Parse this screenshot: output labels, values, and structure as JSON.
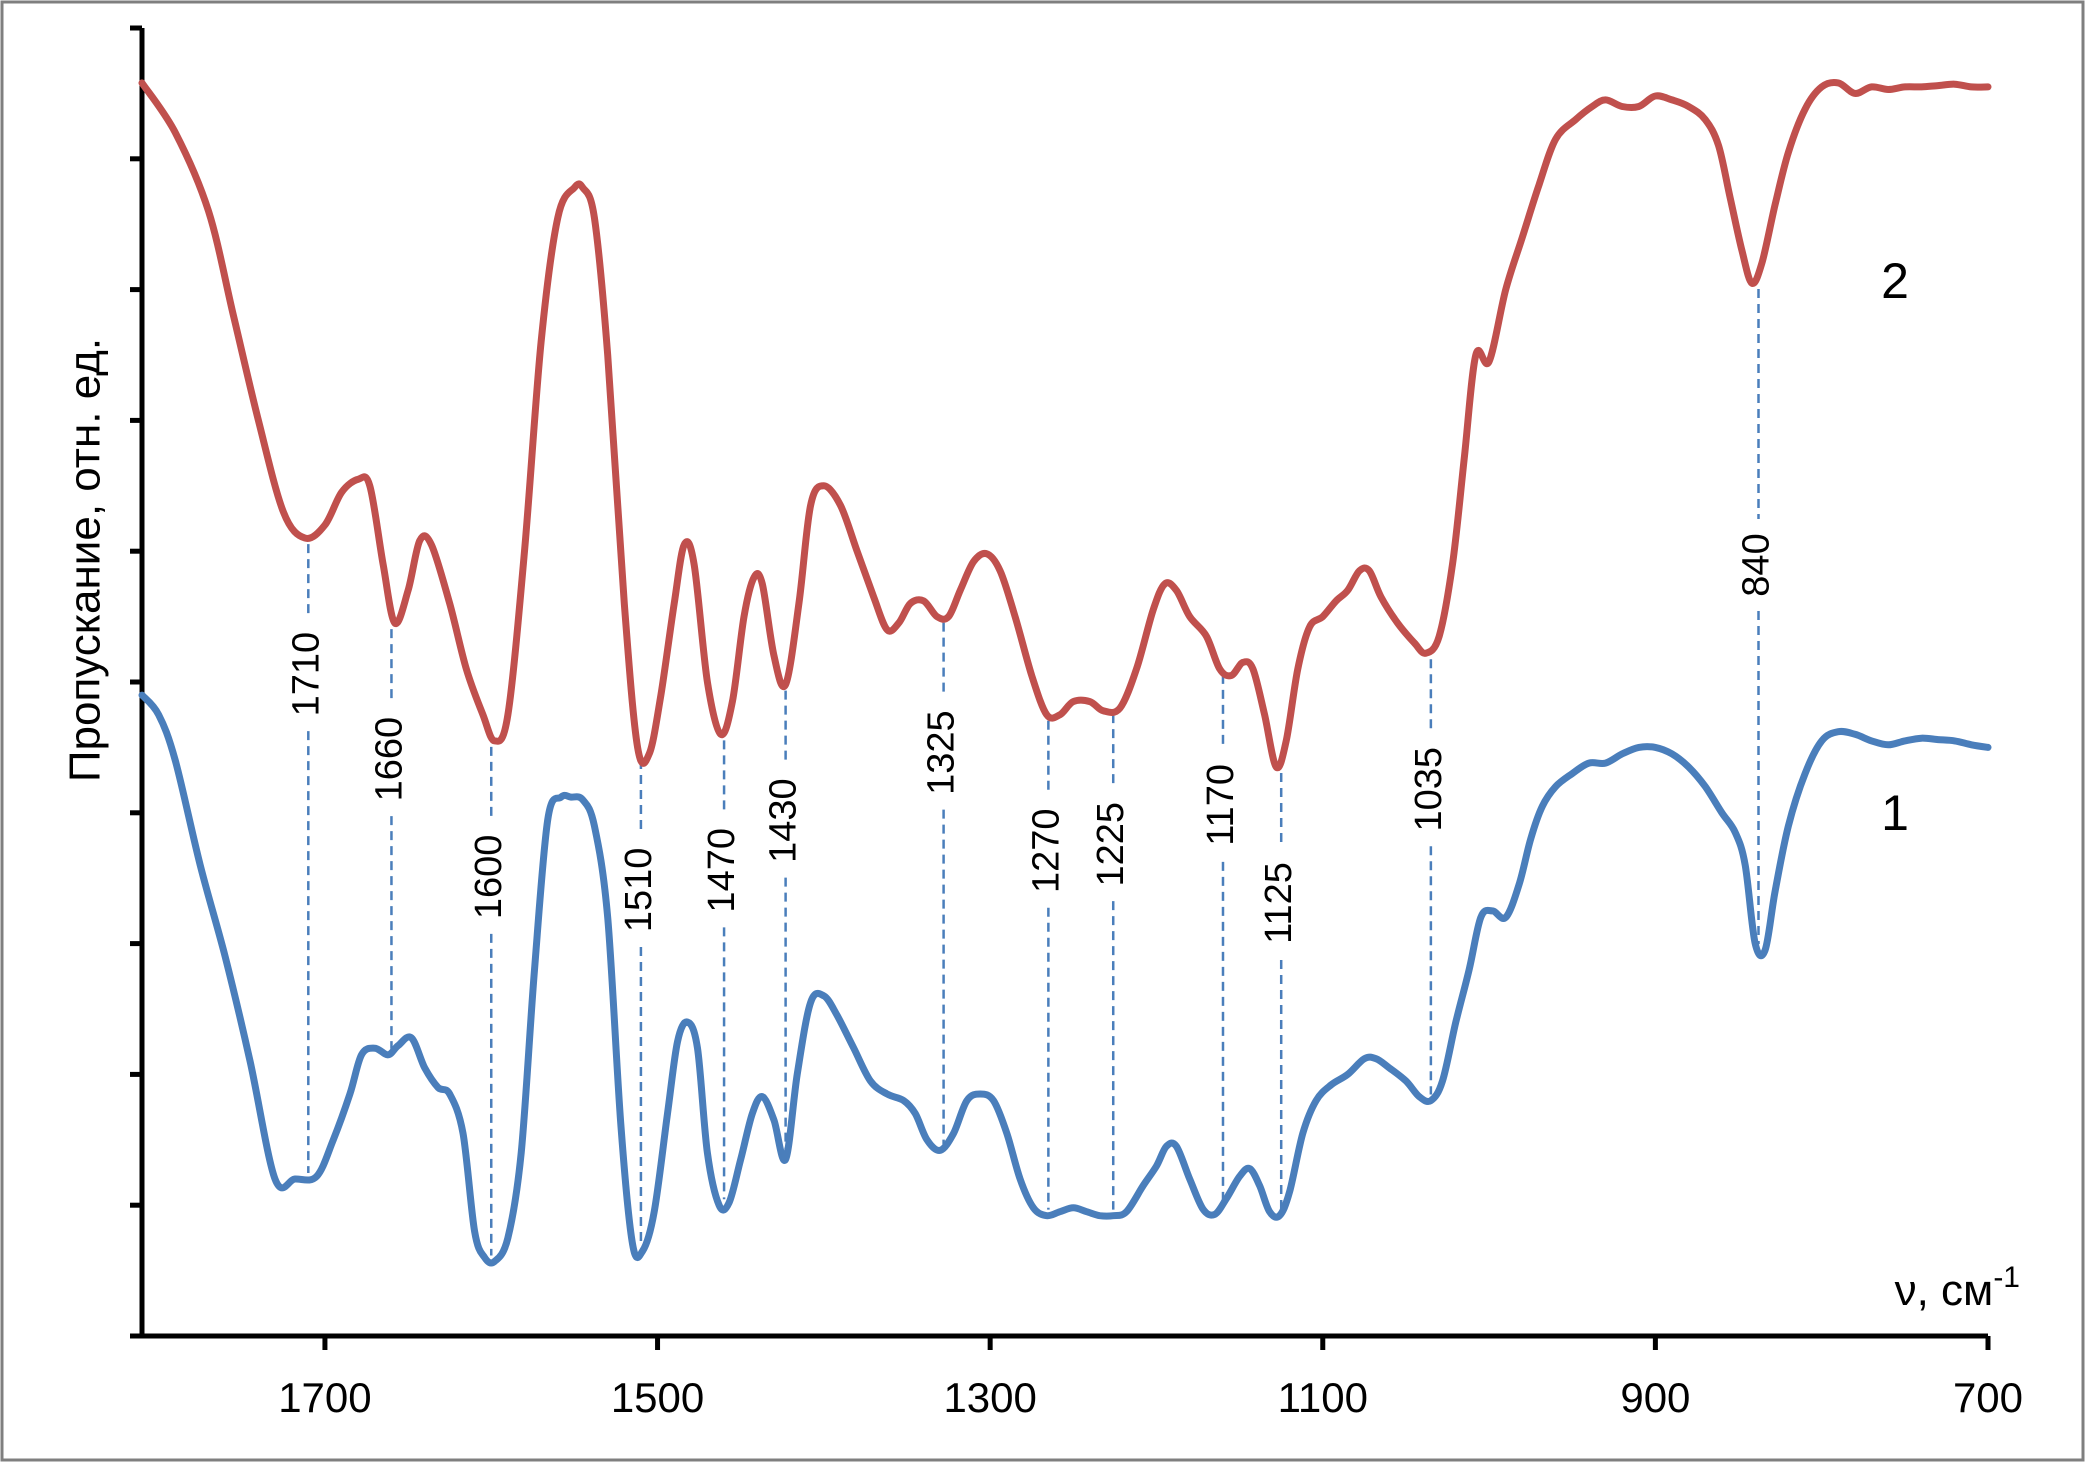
{
  "chart_data": {
    "type": "line",
    "ylabel": "Пропускание, отн. ед.",
    "xlabel": {
      "prefix": "ν, см",
      "superscript": "-1"
    },
    "xlim": [
      1810,
      700
    ],
    "x_ticks": [
      1700,
      1500,
      1300,
      1100,
      900,
      700
    ],
    "x_reversed": true,
    "y_tick_count": 10,
    "grid": false,
    "legend": "inline labels",
    "series": [
      {
        "name": "2",
        "color": "#c0504d",
        "points": [
          [
            1810,
            9.58
          ],
          [
            1790,
            9.2
          ],
          [
            1770,
            8.6
          ],
          [
            1755,
            7.8
          ],
          [
            1740,
            7.0
          ],
          [
            1725,
            6.3
          ],
          [
            1712,
            6.1
          ],
          [
            1700,
            6.2
          ],
          [
            1690,
            6.45
          ],
          [
            1680,
            6.55
          ],
          [
            1673,
            6.5
          ],
          [
            1665,
            5.9
          ],
          [
            1658,
            5.45
          ],
          [
            1650,
            5.7
          ],
          [
            1643,
            6.08
          ],
          [
            1636,
            6.05
          ],
          [
            1625,
            5.6
          ],
          [
            1615,
            5.1
          ],
          [
            1605,
            4.75
          ],
          [
            1598,
            4.55
          ],
          [
            1590,
            4.75
          ],
          [
            1580,
            6.0
          ],
          [
            1570,
            7.6
          ],
          [
            1560,
            8.55
          ],
          [
            1550,
            8.78
          ],
          [
            1545,
            8.78
          ],
          [
            1538,
            8.55
          ],
          [
            1530,
            7.5
          ],
          [
            1520,
            5.6
          ],
          [
            1512,
            4.5
          ],
          [
            1505,
            4.45
          ],
          [
            1498,
            4.9
          ],
          [
            1490,
            5.6
          ],
          [
            1484,
            6.05
          ],
          [
            1478,
            5.9
          ],
          [
            1470,
            5.0
          ],
          [
            1462,
            4.6
          ],
          [
            1455,
            4.85
          ],
          [
            1448,
            5.5
          ],
          [
            1442,
            5.8
          ],
          [
            1437,
            5.75
          ],
          [
            1430,
            5.2
          ],
          [
            1423,
            4.98
          ],
          [
            1415,
            5.6
          ],
          [
            1408,
            6.35
          ],
          [
            1400,
            6.5
          ],
          [
            1390,
            6.35
          ],
          [
            1380,
            6.0
          ],
          [
            1370,
            5.65
          ],
          [
            1362,
            5.4
          ],
          [
            1355,
            5.45
          ],
          [
            1348,
            5.6
          ],
          [
            1340,
            5.62
          ],
          [
            1332,
            5.5
          ],
          [
            1325,
            5.5
          ],
          [
            1318,
            5.7
          ],
          [
            1310,
            5.92
          ],
          [
            1302,
            5.98
          ],
          [
            1294,
            5.85
          ],
          [
            1285,
            5.5
          ],
          [
            1275,
            5.05
          ],
          [
            1266,
            4.75
          ],
          [
            1258,
            4.75
          ],
          [
            1250,
            4.85
          ],
          [
            1240,
            4.85
          ],
          [
            1232,
            4.78
          ],
          [
            1222,
            4.8
          ],
          [
            1212,
            5.1
          ],
          [
            1202,
            5.55
          ],
          [
            1195,
            5.75
          ],
          [
            1188,
            5.7
          ],
          [
            1180,
            5.5
          ],
          [
            1170,
            5.35
          ],
          [
            1162,
            5.1
          ],
          [
            1155,
            5.05
          ],
          [
            1148,
            5.15
          ],
          [
            1142,
            5.1
          ],
          [
            1135,
            4.75
          ],
          [
            1128,
            4.35
          ],
          [
            1122,
            4.55
          ],
          [
            1115,
            5.1
          ],
          [
            1108,
            5.42
          ],
          [
            1100,
            5.5
          ],
          [
            1092,
            5.62
          ],
          [
            1085,
            5.7
          ],
          [
            1078,
            5.85
          ],
          [
            1072,
            5.85
          ],
          [
            1065,
            5.65
          ],
          [
            1055,
            5.45
          ],
          [
            1045,
            5.3
          ],
          [
            1038,
            5.22
          ],
          [
            1030,
            5.35
          ],
          [
            1022,
            5.9
          ],
          [
            1015,
            6.7
          ],
          [
            1008,
            7.5
          ],
          [
            1000,
            7.45
          ],
          [
            990,
            8.0
          ],
          [
            980,
            8.4
          ],
          [
            970,
            8.8
          ],
          [
            960,
            9.15
          ],
          [
            948,
            9.3
          ],
          [
            938,
            9.4
          ],
          [
            930,
            9.45
          ],
          [
            920,
            9.4
          ],
          [
            910,
            9.4
          ],
          [
            900,
            9.48
          ],
          [
            890,
            9.45
          ],
          [
            880,
            9.4
          ],
          [
            870,
            9.3
          ],
          [
            862,
            9.1
          ],
          [
            855,
            8.7
          ],
          [
            848,
            8.3
          ],
          [
            842,
            8.05
          ],
          [
            836,
            8.2
          ],
          [
            828,
            8.65
          ],
          [
            820,
            9.05
          ],
          [
            810,
            9.38
          ],
          [
            800,
            9.55
          ],
          [
            790,
            9.58
          ],
          [
            780,
            9.5
          ],
          [
            770,
            9.55
          ],
          [
            760,
            9.53
          ],
          [
            750,
            9.55
          ],
          [
            740,
            9.55
          ],
          [
            730,
            9.56
          ],
          [
            720,
            9.57
          ],
          [
            710,
            9.55
          ],
          [
            700,
            9.55
          ]
        ]
      },
      {
        "name": "1",
        "color": "#4a7ebb",
        "points": [
          [
            1810,
            4.9
          ],
          [
            1800,
            4.75
          ],
          [
            1790,
            4.4
          ],
          [
            1775,
            3.6
          ],
          [
            1760,
            2.9
          ],
          [
            1745,
            2.1
          ],
          [
            1730,
            1.2
          ],
          [
            1718,
            1.2
          ],
          [
            1705,
            1.22
          ],
          [
            1695,
            1.5
          ],
          [
            1685,
            1.85
          ],
          [
            1678,
            2.15
          ],
          [
            1670,
            2.2
          ],
          [
            1662,
            2.15
          ],
          [
            1656,
            2.22
          ],
          [
            1648,
            2.28
          ],
          [
            1640,
            2.05
          ],
          [
            1632,
            1.9
          ],
          [
            1625,
            1.85
          ],
          [
            1617,
            1.55
          ],
          [
            1610,
            0.8
          ],
          [
            1604,
            0.6
          ],
          [
            1598,
            0.57
          ],
          [
            1590,
            0.75
          ],
          [
            1582,
            1.4
          ],
          [
            1574,
            2.8
          ],
          [
            1566,
            3.95
          ],
          [
            1558,
            4.12
          ],
          [
            1552,
            4.12
          ],
          [
            1545,
            4.1
          ],
          [
            1538,
            3.9
          ],
          [
            1530,
            3.2
          ],
          [
            1522,
            1.6
          ],
          [
            1515,
            0.7
          ],
          [
            1509,
            0.65
          ],
          [
            1502,
            0.95
          ],
          [
            1494,
            1.7
          ],
          [
            1488,
            2.25
          ],
          [
            1482,
            2.4
          ],
          [
            1476,
            2.2
          ],
          [
            1470,
            1.4
          ],
          [
            1463,
            1.0
          ],
          [
            1457,
            1.02
          ],
          [
            1450,
            1.35
          ],
          [
            1443,
            1.7
          ],
          [
            1437,
            1.83
          ],
          [
            1430,
            1.65
          ],
          [
            1423,
            1.35
          ],
          [
            1416,
            2.0
          ],
          [
            1408,
            2.55
          ],
          [
            1400,
            2.6
          ],
          [
            1392,
            2.45
          ],
          [
            1382,
            2.2
          ],
          [
            1372,
            1.95
          ],
          [
            1362,
            1.85
          ],
          [
            1352,
            1.8
          ],
          [
            1345,
            1.7
          ],
          [
            1338,
            1.5
          ],
          [
            1330,
            1.42
          ],
          [
            1322,
            1.55
          ],
          [
            1314,
            1.8
          ],
          [
            1306,
            1.85
          ],
          [
            1298,
            1.8
          ],
          [
            1290,
            1.55
          ],
          [
            1282,
            1.2
          ],
          [
            1274,
            0.98
          ],
          [
            1266,
            0.92
          ],
          [
            1258,
            0.95
          ],
          [
            1250,
            0.98
          ],
          [
            1242,
            0.95
          ],
          [
            1234,
            0.92
          ],
          [
            1226,
            0.92
          ],
          [
            1218,
            0.95
          ],
          [
            1208,
            1.15
          ],
          [
            1200,
            1.3
          ],
          [
            1194,
            1.45
          ],
          [
            1188,
            1.45
          ],
          [
            1180,
            1.2
          ],
          [
            1172,
            0.97
          ],
          [
            1165,
            0.93
          ],
          [
            1158,
            1.05
          ],
          [
            1150,
            1.22
          ],
          [
            1144,
            1.28
          ],
          [
            1138,
            1.15
          ],
          [
            1132,
            0.95
          ],
          [
            1126,
            0.92
          ],
          [
            1120,
            1.1
          ],
          [
            1112,
            1.55
          ],
          [
            1104,
            1.8
          ],
          [
            1095,
            1.92
          ],
          [
            1085,
            2.0
          ],
          [
            1075,
            2.12
          ],
          [
            1068,
            2.12
          ],
          [
            1060,
            2.05
          ],
          [
            1050,
            1.95
          ],
          [
            1042,
            1.83
          ],
          [
            1035,
            1.8
          ],
          [
            1028,
            1.95
          ],
          [
            1020,
            2.4
          ],
          [
            1012,
            2.8
          ],
          [
            1005,
            3.2
          ],
          [
            998,
            3.25
          ],
          [
            990,
            3.2
          ],
          [
            982,
            3.45
          ],
          [
            975,
            3.8
          ],
          [
            968,
            4.05
          ],
          [
            960,
            4.2
          ],
          [
            950,
            4.3
          ],
          [
            940,
            4.38
          ],
          [
            930,
            4.38
          ],
          [
            920,
            4.45
          ],
          [
            910,
            4.5
          ],
          [
            900,
            4.5
          ],
          [
            890,
            4.45
          ],
          [
            880,
            4.35
          ],
          [
            870,
            4.2
          ],
          [
            860,
            4.0
          ],
          [
            852,
            3.85
          ],
          [
            846,
            3.6
          ],
          [
            840,
            3.0
          ],
          [
            834,
            2.95
          ],
          [
            828,
            3.4
          ],
          [
            820,
            3.9
          ],
          [
            810,
            4.3
          ],
          [
            800,
            4.55
          ],
          [
            790,
            4.62
          ],
          [
            780,
            4.6
          ],
          [
            770,
            4.55
          ],
          [
            760,
            4.52
          ],
          [
            750,
            4.55
          ],
          [
            740,
            4.57
          ],
          [
            730,
            4.56
          ],
          [
            720,
            4.55
          ],
          [
            710,
            4.52
          ],
          [
            700,
            4.5
          ]
        ]
      }
    ],
    "peaks": [
      {
        "label": "1710",
        "x": 1710,
        "y_top": 6.1,
        "y_bottom": 1.2
      },
      {
        "label": "1660",
        "x": 1660,
        "y_top": 5.45,
        "y_bottom": 2.15
      },
      {
        "label": "1600",
        "x": 1600,
        "y_top": 4.55,
        "y_bottom": 0.57
      },
      {
        "label": "1510",
        "x": 1510,
        "y_top": 4.45,
        "y_bottom": 0.65
      },
      {
        "label": "1470",
        "x": 1460,
        "y_top": 4.6,
        "y_bottom": 1.0
      },
      {
        "label": "1430",
        "x": 1423,
        "y_top": 4.98,
        "y_bottom": 1.35
      },
      {
        "label": "1325",
        "x": 1328,
        "y_top": 5.5,
        "y_bottom": 1.42
      },
      {
        "label": "1270",
        "x": 1265,
        "y_top": 4.75,
        "y_bottom": 0.92
      },
      {
        "label": "1225",
        "x": 1226,
        "y_top": 4.8,
        "y_bottom": 0.92
      },
      {
        "label": "1170",
        "x": 1160,
        "y_top": 5.1,
        "y_bottom": 0.93
      },
      {
        "label": "1125",
        "x": 1125,
        "y_top": 4.35,
        "y_bottom": 0.92
      },
      {
        "label": "1035",
        "x": 1035,
        "y_top": 5.22,
        "y_bottom": 1.8
      },
      {
        "label": "840",
        "x": 838,
        "y_top": 8.05,
        "y_bottom": 2.95
      }
    ]
  }
}
